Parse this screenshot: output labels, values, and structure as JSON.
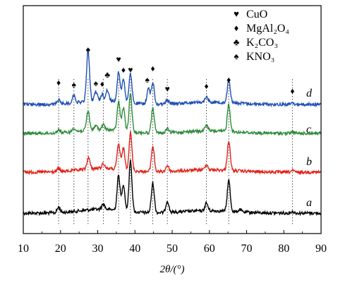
{
  "chart_data": {
    "type": "line",
    "title": "",
    "xlabel": "2θ/(°)",
    "ylabel": "",
    "xlim": [
      10,
      90
    ],
    "x_ticks": [
      "10",
      "20",
      "30",
      "40",
      "50",
      "60",
      "70",
      "80",
      "90"
    ],
    "y_ticks": false,
    "grid": false,
    "series": [
      {
        "name": "a",
        "color": "#000000",
        "peaks": [
          [
            19.5,
            0.07
          ],
          [
            31.5,
            0.07
          ],
          [
            35.6,
            0.45
          ],
          [
            36.9,
            0.34
          ],
          [
            38.8,
            0.66
          ],
          [
            44.8,
            0.38
          ],
          [
            48.7,
            0.15
          ],
          [
            59.2,
            0.1
          ],
          [
            65.2,
            0.4
          ],
          [
            68.2,
            0.03
          ],
          [
            82.3,
            0.02
          ]
        ]
      },
      {
        "name": "b",
        "color": "#e2231a",
        "peaks": [
          [
            19.5,
            0.04
          ],
          [
            27.5,
            0.15
          ],
          [
            31.5,
            0.06
          ],
          [
            35.6,
            0.33
          ],
          [
            36.9,
            0.28
          ],
          [
            38.8,
            0.49
          ],
          [
            44.8,
            0.33
          ],
          [
            48.7,
            0.08
          ],
          [
            59.2,
            0.07
          ],
          [
            65.2,
            0.38
          ],
          [
            82.3,
            0.02
          ]
        ]
      },
      {
        "name": "c",
        "color": "#2e8b3a",
        "peaks": [
          [
            19.5,
            0.04
          ],
          [
            23.6,
            0.05
          ],
          [
            27.4,
            0.25
          ],
          [
            29.5,
            0.05
          ],
          [
            31.5,
            0.06
          ],
          [
            35.6,
            0.37
          ],
          [
            36.9,
            0.3
          ],
          [
            38.8,
            0.48
          ],
          [
            44.8,
            0.32
          ],
          [
            48.7,
            0.05
          ],
          [
            59.2,
            0.08
          ],
          [
            65.2,
            0.35
          ],
          [
            82.3,
            0.02
          ]
        ]
      },
      {
        "name": "d",
        "color": "#1f4fb5",
        "peaks": [
          [
            19.5,
            0.05
          ],
          [
            23.6,
            0.1
          ],
          [
            27.4,
            0.66
          ],
          [
            29.5,
            0.12
          ],
          [
            31.2,
            0.08
          ],
          [
            32.6,
            0.14
          ],
          [
            35.6,
            0.38
          ],
          [
            36.9,
            0.3
          ],
          [
            38.8,
            0.37
          ],
          [
            43.6,
            0.2
          ],
          [
            44.8,
            0.28
          ],
          [
            48.7,
            0.05
          ],
          [
            59.2,
            0.07
          ],
          [
            65.2,
            0.3
          ],
          [
            82.3,
            0.02
          ]
        ]
      }
    ],
    "reference_lines": [
      19.5,
      23.6,
      27.4,
      31.5,
      35.6,
      38.8,
      44.8,
      48.7,
      59.2,
      65.2,
      82.3
    ],
    "peak_markers": [
      {
        "x": 19.5,
        "symbol": "♦"
      },
      {
        "x": 23.6,
        "symbol": "♠"
      },
      {
        "x": 27.4,
        "symbol": "♠"
      },
      {
        "x": 29.5,
        "symbol": "♠"
      },
      {
        "x": 31.2,
        "symbol": "♦"
      },
      {
        "x": 32.6,
        "symbol": "♣"
      },
      {
        "x": 35.6,
        "symbol": "♥"
      },
      {
        "x": 36.9,
        "symbol": "♦"
      },
      {
        "x": 38.8,
        "symbol": "♥"
      },
      {
        "x": 43.3,
        "symbol": "♠"
      },
      {
        "x": 44.8,
        "symbol": "♦"
      },
      {
        "x": 48.7,
        "symbol": "♥"
      },
      {
        "x": 59.2,
        "symbol": "♦"
      },
      {
        "x": 65.2,
        "symbol": "♦"
      },
      {
        "x": 82.3,
        "symbol": "♦"
      }
    ],
    "legend": {
      "placement": "top-right",
      "entries": [
        {
          "symbol": "♥",
          "label": "CuO"
        },
        {
          "symbol": "♦",
          "label": "MgAl₂O₄"
        },
        {
          "symbol": "♣",
          "label": "K₂CO₃"
        },
        {
          "symbol": "♠",
          "label": "KNO₃"
        }
      ]
    }
  }
}
